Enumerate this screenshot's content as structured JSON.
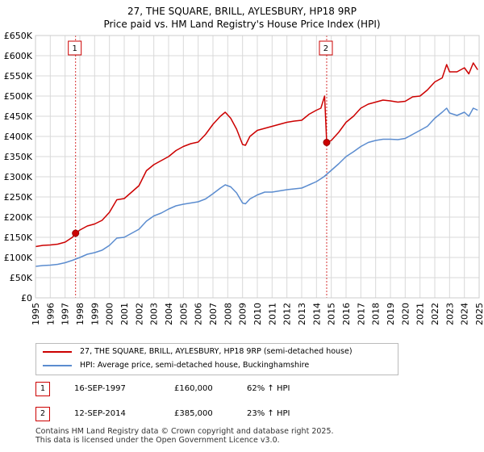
{
  "title_line1": "27, THE SQUARE, BRILL, AYLESBURY, HP18 9RP",
  "title_line2": "Price paid vs. HM Land Registry's House Price Index (HPI)",
  "chart_data": {
    "type": "line",
    "ylabel": "",
    "xlabel": "",
    "ylim": [
      0,
      650000
    ],
    "xlim": [
      1995,
      2025
    ],
    "y_ticks": [
      0,
      50000,
      100000,
      150000,
      200000,
      250000,
      300000,
      350000,
      400000,
      450000,
      500000,
      550000,
      600000,
      650000
    ],
    "y_tick_labels": [
      "£0",
      "£50K",
      "£100K",
      "£150K",
      "£200K",
      "£250K",
      "£300K",
      "£350K",
      "£400K",
      "£450K",
      "£500K",
      "£550K",
      "£600K",
      "£650K"
    ],
    "x_ticks": [
      1995,
      1996,
      1997,
      1998,
      1999,
      2000,
      2001,
      2002,
      2003,
      2004,
      2005,
      2006,
      2007,
      2008,
      2009,
      2010,
      2011,
      2012,
      2013,
      2014,
      2015,
      2016,
      2017,
      2018,
      2019,
      2020,
      2021,
      2022,
      2023,
      2024,
      2025
    ],
    "grid": true,
    "series": [
      {
        "name": "27, THE SQUARE, BRILL, AYLESBURY, HP18 9RP (semi-detached house)",
        "color": "#cc0000",
        "x": [
          1995.0,
          1995.5,
          1996.0,
          1996.5,
          1997.0,
          1997.5,
          1997.71,
          1998.0,
          1998.5,
          1999.0,
          1999.5,
          2000.0,
          2000.5,
          2001.0,
          2001.5,
          2002.0,
          2002.5,
          2003.0,
          2003.5,
          2004.0,
          2004.5,
          2005.0,
          2005.5,
          2006.0,
          2006.5,
          2007.0,
          2007.5,
          2007.83,
          2008.2,
          2008.6,
          2009.0,
          2009.2,
          2009.5,
          2010.0,
          2010.5,
          2011.0,
          2011.5,
          2012.0,
          2012.5,
          2013.0,
          2013.5,
          2014.0,
          2014.3,
          2014.55,
          2014.69,
          2015.0,
          2015.5,
          2016.0,
          2016.5,
          2017.0,
          2017.5,
          2018.0,
          2018.5,
          2019.0,
          2019.5,
          2020.0,
          2020.5,
          2021.0,
          2021.5,
          2022.0,
          2022.5,
          2022.8,
          2023.0,
          2023.5,
          2024.0,
          2024.3,
          2024.6,
          2024.9
        ],
        "values": [
          127000,
          130000,
          131000,
          133000,
          138000,
          150000,
          160000,
          168000,
          178000,
          183000,
          192000,
          212000,
          243000,
          246000,
          262000,
          278000,
          315000,
          330000,
          340000,
          350000,
          365000,
          375000,
          382000,
          386000,
          405000,
          430000,
          450000,
          460000,
          445000,
          418000,
          380000,
          378000,
          400000,
          415000,
          420000,
          425000,
          430000,
          435000,
          438000,
          440000,
          455000,
          465000,
          470000,
          500000,
          385000,
          390000,
          410000,
          435000,
          450000,
          470000,
          480000,
          485000,
          490000,
          488000,
          485000,
          487000,
          498000,
          500000,
          515000,
          535000,
          545000,
          578000,
          560000,
          560000,
          570000,
          555000,
          582000,
          565000
        ]
      },
      {
        "name": "HPI: Average price, semi-detached house, Buckinghamshire",
        "color": "#5b8ccf",
        "x": [
          1995.0,
          1995.5,
          1996.0,
          1996.5,
          1997.0,
          1997.5,
          1998.0,
          1998.5,
          1999.0,
          1999.5,
          2000.0,
          2000.5,
          2001.0,
          2001.5,
          2002.0,
          2002.5,
          2003.0,
          2003.5,
          2004.0,
          2004.5,
          2005.0,
          2005.5,
          2006.0,
          2006.5,
          2007.0,
          2007.5,
          2007.83,
          2008.2,
          2008.6,
          2009.0,
          2009.2,
          2009.5,
          2010.0,
          2010.5,
          2011.0,
          2011.5,
          2012.0,
          2012.5,
          2013.0,
          2013.5,
          2014.0,
          2014.5,
          2015.0,
          2015.5,
          2016.0,
          2016.5,
          2017.0,
          2017.5,
          2018.0,
          2018.5,
          2019.0,
          2019.5,
          2020.0,
          2020.5,
          2021.0,
          2021.5,
          2022.0,
          2022.5,
          2022.8,
          2023.0,
          2023.5,
          2024.0,
          2024.3,
          2024.6,
          2024.9
        ],
        "values": [
          78000,
          80000,
          81000,
          83000,
          87000,
          93000,
          100000,
          108000,
          112000,
          118000,
          130000,
          148000,
          150000,
          160000,
          170000,
          190000,
          203000,
          210000,
          220000,
          228000,
          232000,
          235000,
          238000,
          245000,
          258000,
          272000,
          280000,
          275000,
          260000,
          235000,
          233000,
          245000,
          255000,
          262000,
          262000,
          265000,
          268000,
          270000,
          272000,
          280000,
          288000,
          300000,
          316000,
          332000,
          350000,
          362000,
          375000,
          385000,
          390000,
          393000,
          393000,
          392000,
          395000,
          405000,
          415000,
          425000,
          445000,
          460000,
          470000,
          458000,
          452000,
          460000,
          450000,
          470000,
          465000
        ]
      }
    ],
    "sales": [
      {
        "label": "1",
        "x": 1997.71,
        "value": 160000
      },
      {
        "label": "2",
        "x": 2014.69,
        "value": 385000
      }
    ]
  },
  "legend": {
    "property_label": "27, THE SQUARE, BRILL, AYLESBURY, HP18 9RP (semi-detached house)",
    "hpi_label": "HPI: Average price, semi-detached house, Buckinghamshire"
  },
  "transactions": [
    {
      "num": "1",
      "date": "16-SEP-1997",
      "price": "£160,000",
      "hpi": "62% ↑ HPI"
    },
    {
      "num": "2",
      "date": "12-SEP-2014",
      "price": "£385,000",
      "hpi": "23% ↑ HPI"
    }
  ],
  "footer_line1": "Contains HM Land Registry data © Crown copyright and database right 2025.",
  "footer_line2": "This data is licensed under the Open Government Licence v3.0."
}
